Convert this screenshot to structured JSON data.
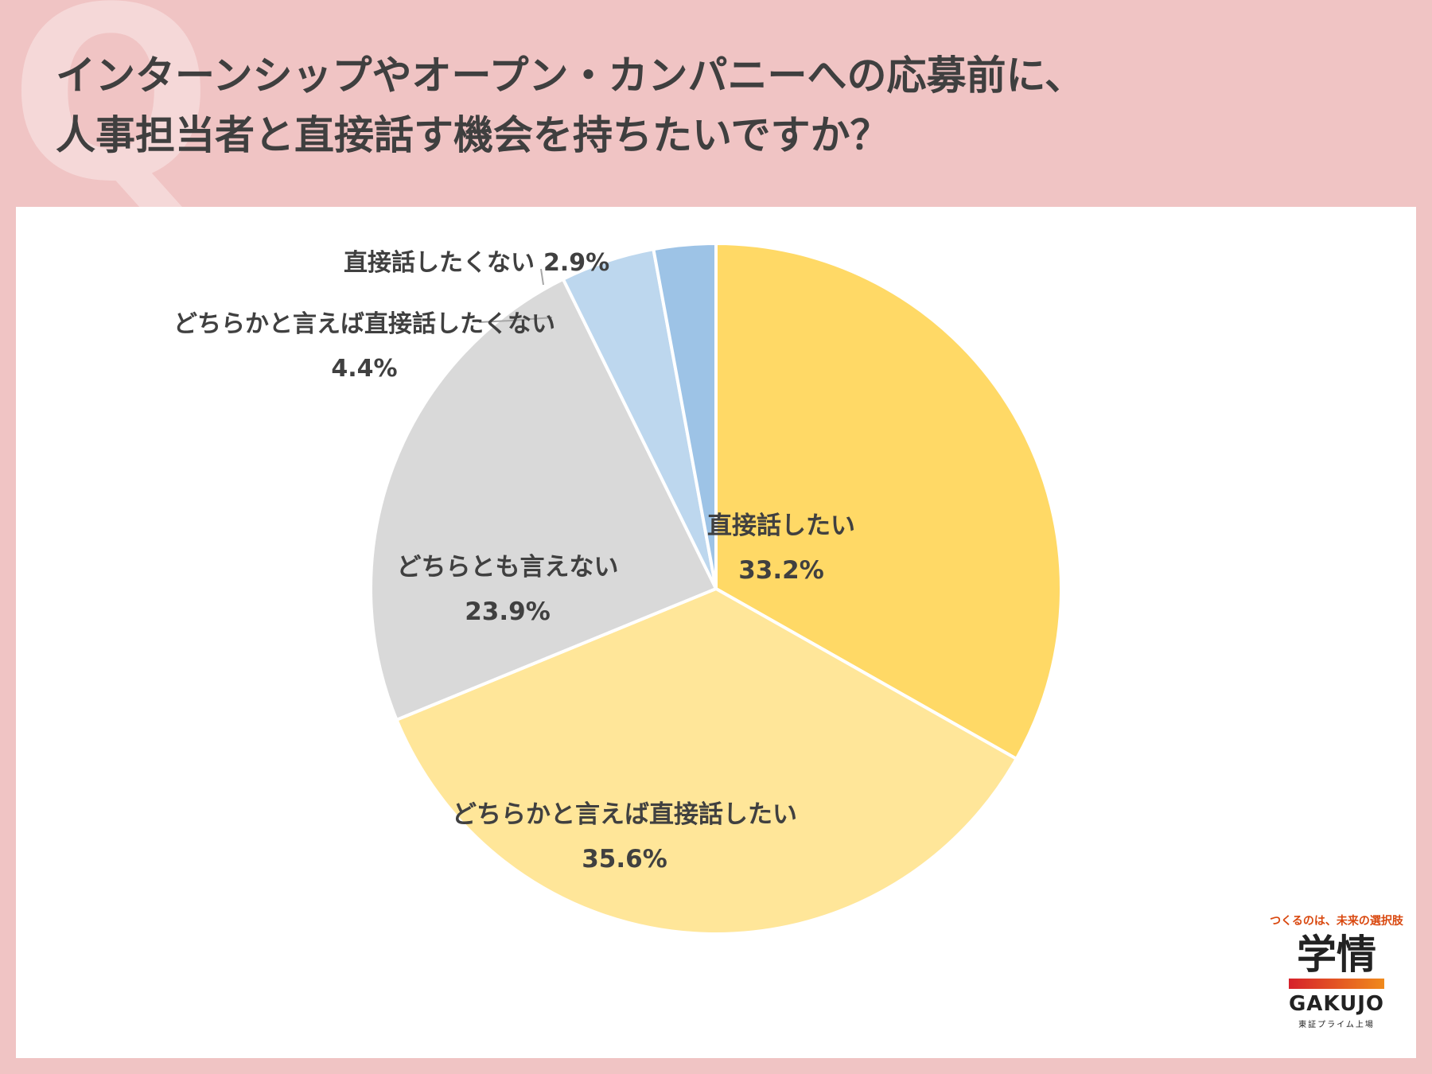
{
  "header": {
    "watermark": "Q",
    "title_line1": "インターンシップやオープン・カンパニーへの応募前に、",
    "title_line2": "人事担当者と直接話す機会を持ちたいですか？"
  },
  "chart_data": {
    "type": "pie",
    "title": "インターンシップやオープン・カンパニーへの応募前に、人事担当者と直接話す機会を持ちたいですか？",
    "start": "12 o'clock, clockwise",
    "slices": [
      {
        "label": "直接話したい",
        "value": 33.2,
        "value_label": "33.2%",
        "color": "#ffd966"
      },
      {
        "label": "どちらかと言えば直接話したい",
        "value": 35.6,
        "value_label": "35.6%",
        "color": "#ffe699"
      },
      {
        "label": "どちらとも言えない",
        "value": 23.9,
        "value_label": "23.9%",
        "color": "#d9d9d9"
      },
      {
        "label": "どちらかと言えば直接話したくない",
        "value": 4.4,
        "value_label": "4.4%",
        "color": "#bdd7ee"
      },
      {
        "label": "直接話したくない",
        "value": 2.9,
        "value_label": "2.9%",
        "color": "#9dc3e6"
      }
    ]
  },
  "logo": {
    "tagline": "つくるのは、未来の選択肢",
    "mark": "学情",
    "name_en": "GAKUJO",
    "sub": "東証プライム上場"
  }
}
